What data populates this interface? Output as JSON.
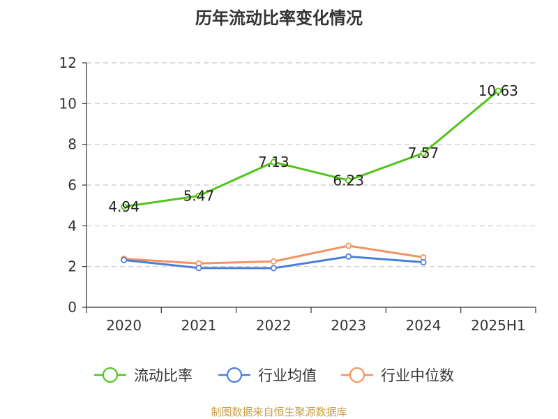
{
  "chart_data": {
    "type": "line",
    "title": "历年流动比率变化情况",
    "categories": [
      "2020",
      "2021",
      "2022",
      "2023",
      "2024",
      "2025H1"
    ],
    "ylim": [
      0,
      12
    ],
    "yticks": [
      0,
      2,
      4,
      6,
      8,
      10,
      12
    ],
    "grid": "dashed horizontal",
    "legend_position": "bottom",
    "series": [
      {
        "name": "流动比率",
        "color": "#52c41a",
        "values": [
          4.94,
          5.47,
          7.13,
          6.23,
          7.57,
          10.63
        ],
        "labels": [
          "4.94",
          "5.47",
          "7.13",
          "6.23",
          "7.57",
          "10.63"
        ]
      },
      {
        "name": "行业均值",
        "color": "#4a7fd8",
        "values": [
          2.32,
          1.93,
          1.92,
          2.49,
          2.21,
          null
        ]
      },
      {
        "name": "行业中位数",
        "color": "#f59360",
        "values": [
          2.38,
          2.15,
          2.25,
          3.02,
          2.45,
          null
        ]
      }
    ]
  },
  "source": "制图数据来自恒生聚源数据库"
}
